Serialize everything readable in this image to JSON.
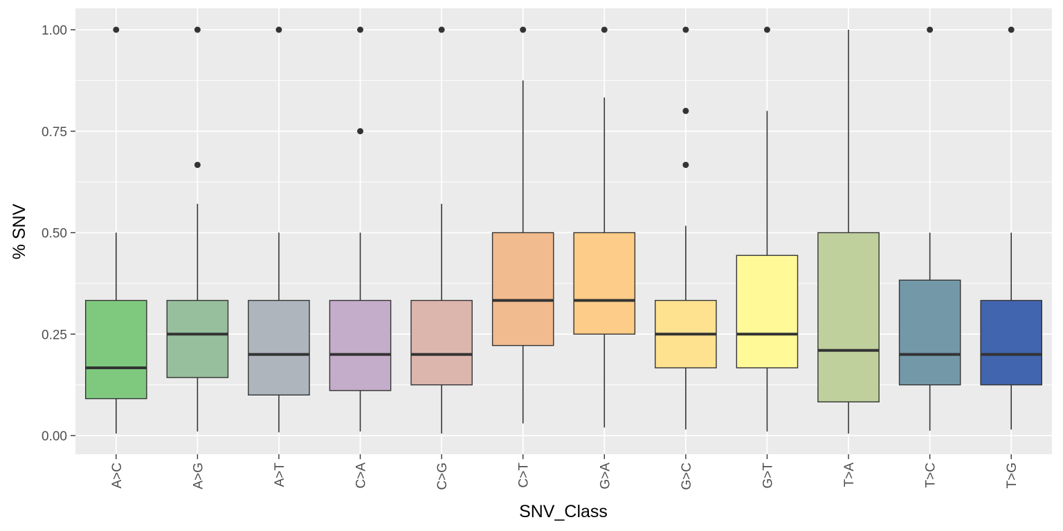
{
  "chart_data": {
    "type": "boxplot",
    "title": "",
    "xlabel": "SNV_Class",
    "ylabel": "% SNV",
    "ylim": [
      -0.04,
      1.04
    ],
    "yticks": [
      0,
      0.25,
      0.5,
      0.75,
      1
    ],
    "ytick_labels": [
      "0.00",
      "0.25",
      "0.50",
      "0.75",
      "1.00"
    ],
    "grid": true,
    "legend": "none",
    "panel_color": "#ebebeb",
    "grid_color": "#ffffff",
    "categories": [
      "A>C",
      "A>G",
      "A>T",
      "C>A",
      "C>G",
      "C>T",
      "G>A",
      "G>C",
      "G>T",
      "T>A",
      "T>C",
      "T>G"
    ],
    "boxes": [
      {
        "category": "A>C",
        "color": "#7fc97f",
        "whisker_low": 0.005,
        "q1": 0.091,
        "median": 0.167,
        "q3": 0.333,
        "whisker_high": 0.5,
        "outliers": [
          1.0
        ]
      },
      {
        "category": "A>G",
        "color": "#97bf9d",
        "whisker_low": 0.01,
        "q1": 0.143,
        "median": 0.25,
        "q3": 0.333,
        "whisker_high": 0.571,
        "outliers": [
          0.667,
          1.0
        ]
      },
      {
        "category": "A>T",
        "color": "#aeb5bd",
        "whisker_low": 0.008,
        "q1": 0.1,
        "median": 0.2,
        "q3": 0.333,
        "whisker_high": 0.5,
        "outliers": [
          1.0
        ]
      },
      {
        "category": "C>A",
        "color": "#c4adca",
        "whisker_low": 0.01,
        "q1": 0.111,
        "median": 0.2,
        "q3": 0.333,
        "whisker_high": 0.5,
        "outliers": [
          0.75,
          1.0
        ]
      },
      {
        "category": "C>G",
        "color": "#dcb6ad",
        "whisker_low": 0.005,
        "q1": 0.125,
        "median": 0.2,
        "q3": 0.333,
        "whisker_high": 0.571,
        "outliers": [
          1.0
        ]
      },
      {
        "category": "C>T",
        "color": "#f1bb8f",
        "whisker_low": 0.03,
        "q1": 0.222,
        "median": 0.333,
        "q3": 0.5,
        "whisker_high": 0.875,
        "outliers": [
          1.0
        ]
      },
      {
        "category": "G>A",
        "color": "#fdcc88",
        "whisker_low": 0.02,
        "q1": 0.25,
        "median": 0.333,
        "q3": 0.5,
        "whisker_high": 0.833,
        "outliers": [
          1.0
        ]
      },
      {
        "category": "G>C",
        "color": "#fee28f",
        "whisker_low": 0.015,
        "q1": 0.167,
        "median": 0.25,
        "q3": 0.333,
        "whisker_high": 0.517,
        "outliers": [
          0.667,
          0.8,
          1.0
        ]
      },
      {
        "category": "G>T",
        "color": "#fff998",
        "whisker_low": 0.01,
        "q1": 0.167,
        "median": 0.25,
        "q3": 0.444,
        "whisker_high": 0.8,
        "outliers": [
          1.0
        ]
      },
      {
        "category": "T>A",
        "color": "#c0d09d",
        "whisker_low": 0.005,
        "q1": 0.083,
        "median": 0.21,
        "q3": 0.5,
        "whisker_high": 1.0,
        "outliers": []
      },
      {
        "category": "T>C",
        "color": "#7399a8",
        "whisker_low": 0.012,
        "q1": 0.125,
        "median": 0.2,
        "q3": 0.383,
        "whisker_high": 0.5,
        "outliers": [
          1.0
        ]
      },
      {
        "category": "T>G",
        "color": "#4165ae",
        "whisker_low": 0.015,
        "q1": 0.125,
        "median": 0.2,
        "q3": 0.333,
        "whisker_high": 0.5,
        "outliers": [
          1.0
        ]
      }
    ]
  }
}
